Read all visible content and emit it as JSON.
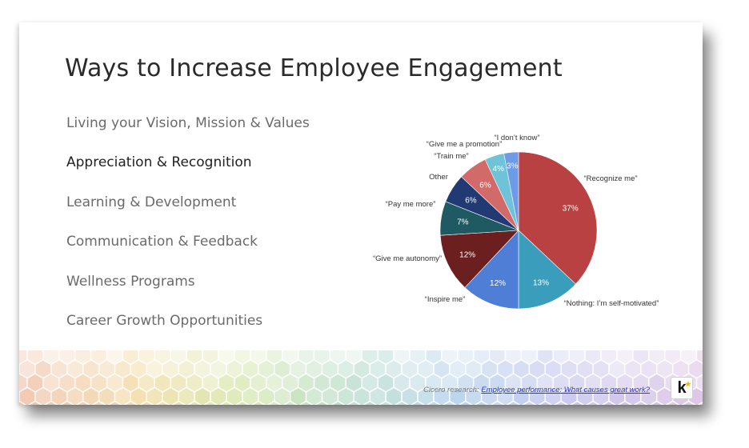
{
  "slide": {
    "title": "Ways to Increase Employee Engagement",
    "bullets": [
      {
        "label": "Living your Vision, Mission & Values",
        "active": false
      },
      {
        "label": "Appreciation & Recognition",
        "active": true
      },
      {
        "label": "Learning & Development",
        "active": false
      },
      {
        "label": "Communication & Feedback",
        "active": false
      },
      {
        "label": "Wellness Programs",
        "active": false
      },
      {
        "label": "Career Growth Opportunities",
        "active": false
      }
    ],
    "citation": {
      "prefix": "Cicero research: ",
      "link_text": "Employee performance: What causes great work?"
    },
    "logo": {
      "letter": "k",
      "star": "★",
      "star_color": "#f4b400"
    }
  },
  "chart_data": {
    "type": "pie",
    "title": "",
    "slices": [
      {
        "label": "“Recognize me”",
        "value": 37,
        "pct_label": "37%",
        "color": "#b94141"
      },
      {
        "label": "“Nothing: I’m self-motivated”",
        "value": 13,
        "pct_label": "13%",
        "color": "#3a9dbb"
      },
      {
        "label": "“Inspire me”",
        "value": 12,
        "pct_label": "12%",
        "color": "#4e7ed6"
      },
      {
        "label": "“Give me autonomy”",
        "value": 12,
        "pct_label": "12%",
        "color": "#6b1f1f"
      },
      {
        "label": "“Pay me more”",
        "value": 7,
        "pct_label": "7%",
        "color": "#1f5a63"
      },
      {
        "label": "Other",
        "value": 6,
        "pct_label": "6%",
        "color": "#213a74"
      },
      {
        "label": "“Train me”",
        "value": 6,
        "pct_label": "6%",
        "color": "#d36a6a"
      },
      {
        "label": "“Give me a promotion”",
        "value": 4,
        "pct_label": "4%",
        "color": "#6ec3d8"
      },
      {
        "label": "“I don’t know”",
        "value": 3,
        "pct_label": "3%",
        "color": "#6d9be8"
      }
    ]
  }
}
